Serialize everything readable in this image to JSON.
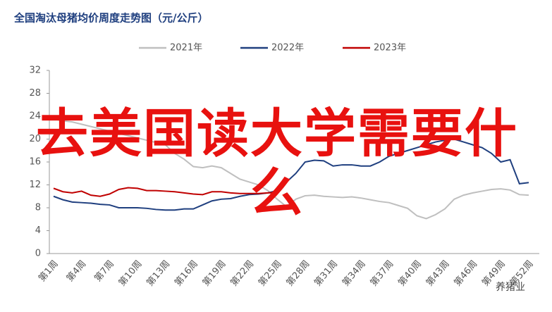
{
  "chart_data": {
    "type": "line",
    "title": "全国淘汰母猪均价周度走势图（元/公斤）",
    "annotation": "去美国读大学需要什么",
    "watermark": "养猪业",
    "categories": [
      "第1周",
      null,
      null,
      "第4周",
      null,
      null,
      "第7周",
      null,
      null,
      "第10周",
      null,
      null,
      "第13周",
      null,
      null,
      "第16周",
      null,
      null,
      "第19周",
      null,
      null,
      "第22周",
      null,
      null,
      "第25周",
      null,
      null,
      "第28周",
      null,
      null,
      "第31周",
      null,
      null,
      "第34周",
      null,
      null,
      "第37周",
      null,
      null,
      "第40周",
      null,
      null,
      "第43周",
      null,
      null,
      "第46周",
      null,
      null,
      "第49周",
      null,
      null,
      "第52周"
    ],
    "series": [
      {
        "name": "2021年",
        "color": "#bfbfbf",
        "values": [
          23.5,
          23.2,
          23,
          22.6,
          22.2,
          21.8,
          21.4,
          21,
          20.6,
          20.2,
          19.8,
          19.4,
          19,
          17.5,
          16.5,
          15.2,
          15,
          15.3,
          15,
          14,
          13,
          12.5,
          12,
          11,
          9.5,
          8.2,
          9.5,
          10.1,
          10.2,
          10,
          9.9,
          9.8,
          9.9,
          9.7,
          9.4,
          9.1,
          8.9,
          8.4,
          7.9,
          6.6,
          6.1,
          6.8,
          7.8,
          9.5,
          10.2,
          10.6,
          10.9,
          11.2,
          11.3,
          11.1,
          10.3,
          10.2
        ]
      },
      {
        "name": "2022年",
        "color": "#1f3f7f",
        "values": [
          10,
          9.4,
          9,
          8.9,
          8.8,
          8.6,
          8.5,
          8,
          8,
          8,
          7.9,
          7.7,
          7.6,
          7.6,
          7.8,
          7.8,
          8.5,
          9.2,
          9.5,
          9.6,
          10,
          10.3,
          10.4,
          10.6,
          11,
          12.5,
          14,
          16,
          16.3,
          16.2,
          15.3,
          15.5,
          15.5,
          15.3,
          15.3,
          16,
          17,
          17.5,
          18,
          18.5,
          19,
          19.5,
          19.8,
          20,
          19.5,
          19,
          18.5,
          17.5,
          16,
          16.4,
          12.2,
          12.4
        ]
      },
      {
        "name": "2023年",
        "color": "#c00000",
        "values": [
          11.4,
          10.8,
          10.6,
          10.9,
          10.2,
          10,
          10.4,
          11.2,
          11.5,
          11.4,
          11,
          11,
          10.9,
          10.8,
          10.6,
          10.4,
          10.3,
          10.8,
          10.8,
          10.6,
          10.5,
          10.5,
          10.5,
          10.6,
          10.7,
          null,
          null,
          null,
          null,
          null,
          null,
          null,
          null,
          null,
          null,
          null,
          null,
          null,
          null,
          null,
          null,
          null,
          null,
          null,
          null,
          null,
          null,
          null,
          null,
          null,
          null,
          null
        ]
      }
    ],
    "ylim": [
      0,
      32
    ],
    "yticks": [
      0,
      4,
      8,
      12,
      16,
      20,
      24,
      28,
      32
    ],
    "grid": false
  }
}
